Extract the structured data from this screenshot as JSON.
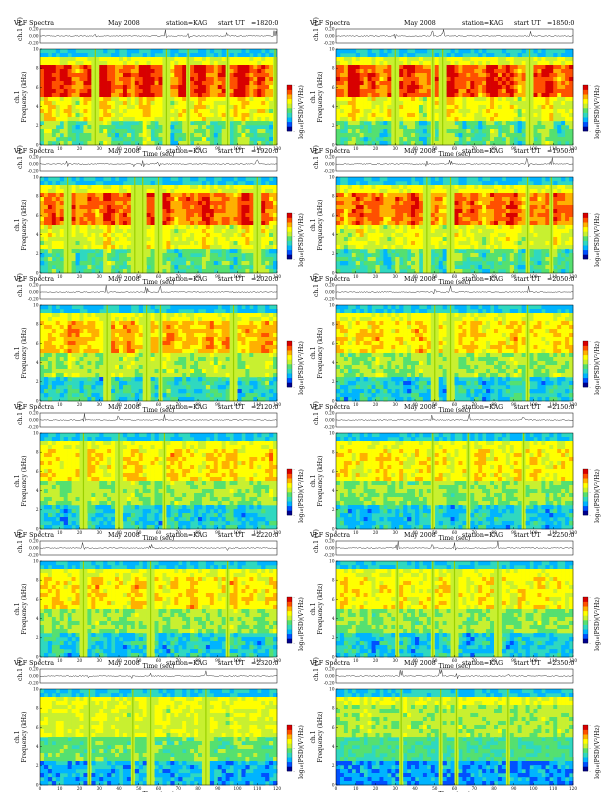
{
  "figure": {
    "title_left": "VLF Spectra",
    "month": "May 2008",
    "station": "station=KAG",
    "start_prefix": "start  UT",
    "ylabel_waveform": "ch.1 (V)",
    "ylabel_channel": "ch.1",
    "ylabel_freq": "Frequency  (kHz)",
    "xlabel": "Time  (sec)",
    "colorbar_label": "log₁₀(PSD)(V²/Hz)",
    "waveform_ticks": [
      "0.20",
      "0.00",
      "-0.20"
    ],
    "freq_ticks": [
      "0",
      "2",
      "4",
      "6",
      "8",
      "10"
    ],
    "time_ticks": [
      "0",
      "10",
      "20",
      "30",
      "40",
      "50",
      "60",
      "70",
      "80",
      "90",
      "100",
      "110",
      "120"
    ],
    "colorbar_ticks": [
      "-",
      "-",
      "-"
    ]
  },
  "colors": {
    "colormap": [
      "#00008f",
      "#0050ff",
      "#00b4ff",
      "#2fd8c0",
      "#55e070",
      "#c8f030",
      "#ffff00",
      "#ffb000",
      "#ff5000",
      "#d80000"
    ]
  },
  "chart_data": [
    {
      "type": "heatmap",
      "start": "=1820:0",
      "x_range": [
        0,
        120
      ],
      "y_range_khz": [
        0,
        10
      ],
      "waveform_range_v": [
        -0.2,
        0.2
      ],
      "activity": 0.9,
      "gaps": [
        28,
        64,
        75,
        95,
        119
      ]
    },
    {
      "type": "heatmap",
      "start": "=1850:0",
      "x_range": [
        0,
        120
      ],
      "y_range_khz": [
        0,
        10
      ],
      "waveform_range_v": [
        -0.2,
        0.2
      ],
      "activity": 0.85,
      "gaps": [
        30,
        49,
        54,
        98
      ]
    },
    {
      "type": "heatmap",
      "start": "=1920:0",
      "x_range": [
        0,
        120
      ],
      "y_range_khz": [
        0,
        10
      ],
      "waveform_range_v": [
        -0.2,
        0.2
      ],
      "activity": 0.8,
      "gaps": [
        14,
        48,
        52,
        60,
        110
      ]
    },
    {
      "type": "heatmap",
      "start": "=1950:0",
      "x_range": [
        0,
        120
      ],
      "y_range_khz": [
        0,
        10
      ],
      "waveform_range_v": [
        -0.2,
        0.2
      ],
      "activity": 0.75,
      "gaps": [
        46,
        58,
        97,
        109
      ]
    },
    {
      "type": "heatmap",
      "start": "=2020:0",
      "x_range": [
        0,
        120
      ],
      "y_range_khz": [
        0,
        10
      ],
      "waveform_range_v": [
        -0.2,
        0.2
      ],
      "activity": 0.55,
      "gaps": [
        34,
        54,
        61,
        98
      ]
    },
    {
      "type": "heatmap",
      "start": "=2050:0",
      "x_range": [
        0,
        120
      ],
      "y_range_khz": [
        0,
        10
      ],
      "waveform_range_v": [
        -0.2,
        0.2
      ],
      "activity": 0.45,
      "gaps": [
        50,
        58,
        97
      ]
    },
    {
      "type": "heatmap",
      "start": "=2120:0",
      "x_range": [
        0,
        120
      ],
      "y_range_khz": [
        0,
        10
      ],
      "waveform_range_v": [
        -0.2,
        0.2
      ],
      "activity": 0.45,
      "gaps": [
        22,
        40,
        63
      ]
    },
    {
      "type": "heatmap",
      "start": "=2150:0",
      "x_range": [
        0,
        120
      ],
      "y_range_khz": [
        0,
        10
      ],
      "waveform_range_v": [
        -0.2,
        0.2
      ],
      "activity": 0.4,
      "gaps": [
        49,
        67,
        95
      ]
    },
    {
      "type": "heatmap",
      "start": "=2220:0",
      "x_range": [
        0,
        120
      ],
      "y_range_khz": [
        0,
        10
      ],
      "waveform_range_v": [
        -0.2,
        0.2
      ],
      "activity": 0.45,
      "gaps": [
        22,
        56,
        95
      ]
    },
    {
      "type": "heatmap",
      "start": "=2250:0",
      "x_range": [
        0,
        120
      ],
      "y_range_khz": [
        0,
        10
      ],
      "waveform_range_v": [
        -0.2,
        0.2
      ],
      "activity": 0.4,
      "gaps": [
        31,
        49,
        60,
        82
      ]
    },
    {
      "type": "heatmap",
      "start": "=2320:0",
      "x_range": [
        0,
        120
      ],
      "y_range_khz": [
        0,
        10
      ],
      "waveform_range_v": [
        -0.2,
        0.2
      ],
      "activity": 0.25,
      "gaps": [
        25,
        47,
        56,
        84
      ]
    },
    {
      "type": "heatmap",
      "start": "=2350:0",
      "x_range": [
        0,
        120
      ],
      "y_range_khz": [
        0,
        10
      ],
      "waveform_range_v": [
        -0.2,
        0.2
      ],
      "activity": 0.12,
      "gaps": [
        33,
        53,
        61,
        87
      ]
    }
  ]
}
